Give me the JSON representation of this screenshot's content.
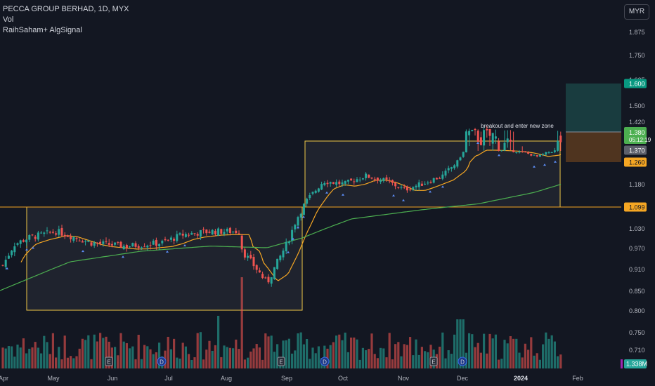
{
  "legend": {
    "title": "PECCA GROUP BERHAD, 1D, MYX",
    "vol": "Vol",
    "indicator": "RaihSaham+ AlgSignal"
  },
  "currency": "MYR",
  "annotation": "breakout and enter new zone",
  "price_scale": {
    "ticks": [
      "1.875",
      "1.750",
      "1.625",
      "1.500",
      "1.420",
      "1.180",
      "1.030",
      "0.970",
      "0.910",
      "0.850",
      "0.800",
      "0.750",
      "0.710"
    ],
    "labels": {
      "target": "1.600",
      "last": "1.380",
      "countdown": "05:12:19",
      "prev": "1.370",
      "stop": "1.260",
      "level": "1.099",
      "volume": "1.338M"
    }
  },
  "time_axis": [
    "Apr",
    "May",
    "Jun",
    "Jul",
    "Aug",
    "Sep",
    "Oct",
    "Nov",
    "Dec",
    "2024",
    "Feb"
  ],
  "colors": {
    "background": "#131722",
    "up": "#26a69a",
    "down": "#ef5350",
    "box": "#f0c948",
    "ma_short": "#f5a623",
    "ma_long": "#4caf50",
    "level_line": "#f5a623",
    "target_zone": "#1c4a4a",
    "stop_zone": "#5a3a1e",
    "signal": "#5c8df6"
  },
  "chart_data": {
    "type": "candlestick",
    "title": "PECCA GROUP BERHAD, 1D, MYX",
    "currency": "MYR",
    "x_range": [
      "Apr 2023",
      "Feb 2024"
    ],
    "y_axis_ticks": [
      0.71,
      0.75,
      0.8,
      0.85,
      0.91,
      0.97,
      1.03,
      1.18,
      1.42,
      1.5,
      1.625,
      1.75,
      1.875
    ],
    "horizontal_level": 1.099,
    "last_price": 1.38,
    "previous_close": 1.37,
    "target": 1.6,
    "stop": 1.26,
    "last_volume": "1.338M",
    "ranges": [
      {
        "from": "Apr 2023",
        "to": "Sep 2023",
        "high": 1.099,
        "low": 0.8
      },
      {
        "from": "Sep 2023",
        "to": "Jan 2024",
        "high": 1.4,
        "low": 1.099
      }
    ],
    "annotations": [
      "breakout and enter new zone"
    ],
    "series": [
      {
        "name": "Vol",
        "type": "volume"
      },
      {
        "name": "RaihSaham+ AlgSignal",
        "type": "signals"
      }
    ]
  }
}
